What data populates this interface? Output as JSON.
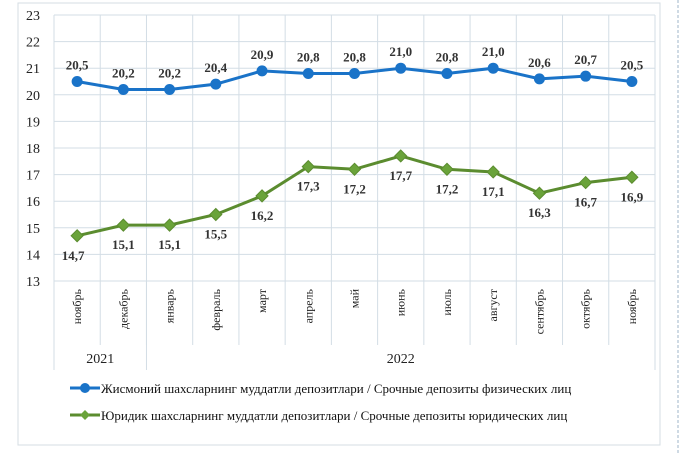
{
  "chart_data": {
    "type": "line",
    "categories": [
      "ноябрь",
      "декабрь",
      "январь",
      "февраль",
      "март",
      "апрель",
      "май",
      "июнь",
      "июль",
      "август",
      "сентябрь",
      "октябрь",
      "ноябрь"
    ],
    "year_groups": [
      {
        "label": "2021",
        "span": 2
      },
      {
        "label": "2022",
        "span": 11
      }
    ],
    "ylim": [
      13,
      23
    ],
    "yticks": [
      "13",
      "14",
      "15",
      "16",
      "17",
      "18",
      "19",
      "20",
      "21",
      "22",
      "23"
    ],
    "grid": true,
    "legend_position": "bottom",
    "series": [
      {
        "name": "Жисмоний шахсларнинг  муддатли  депозитлари  / Срочные депозиты  физических  лиц",
        "color": "#1a73c8",
        "marker": "circle",
        "values": [
          20.5,
          20.2,
          20.2,
          20.4,
          20.9,
          20.8,
          20.8,
          21.0,
          20.8,
          21.0,
          20.6,
          20.7,
          20.5
        ],
        "labels": [
          "20,5",
          "20,2",
          "20,2",
          "20,4",
          "20,9",
          "20,8",
          "20,8",
          "21,0",
          "20,8",
          "21,0",
          "20,6",
          "20,7",
          "20,5"
        ]
      },
      {
        "name": "Юридик шахсларнинг  муддатли  депозитлари  / Срочные депозиты юридических  лиц",
        "color": "#5b8c2f",
        "marker": "diamond",
        "values": [
          14.7,
          15.1,
          15.1,
          15.5,
          16.2,
          17.3,
          17.2,
          17.7,
          17.2,
          17.1,
          16.3,
          16.7,
          16.9
        ],
        "labels": [
          "14,7",
          "15,1",
          "15,1",
          "15,5",
          "16,2",
          "17,3",
          "17,2",
          "17,7",
          "17,2",
          "17,1",
          "16,3",
          "16,7",
          "16,9"
        ]
      }
    ]
  }
}
